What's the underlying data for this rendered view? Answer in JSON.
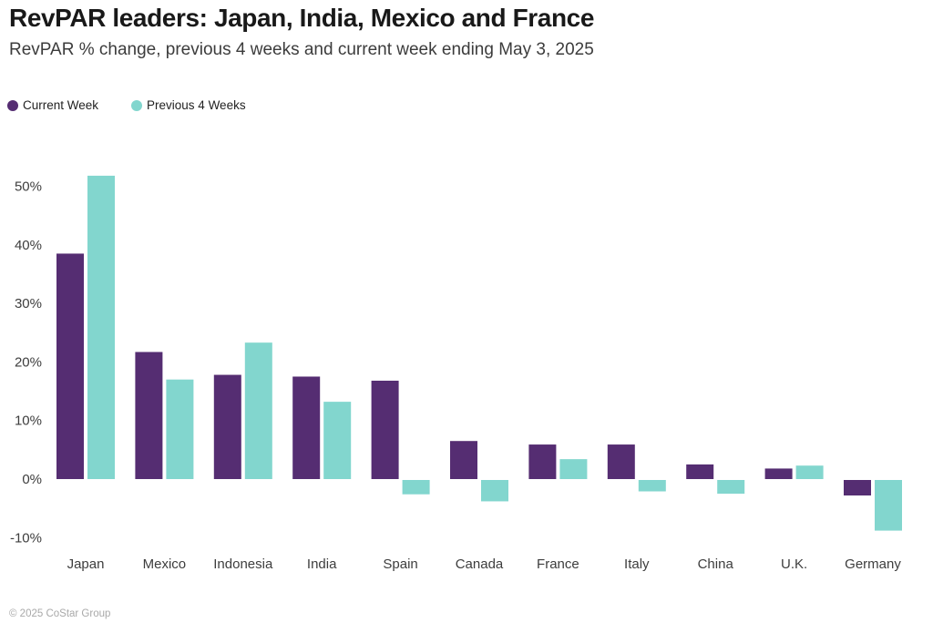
{
  "header": {
    "title": "RevPAR leaders: Japan, India, Mexico and France",
    "subtitle": "RevPAR % change, previous 4 weeks and current week ending May 3, 2025"
  },
  "legend": [
    {
      "label": "Current Week",
      "color": "#552d72"
    },
    {
      "label": "Previous 4 Weeks",
      "color": "#82d6ce"
    }
  ],
  "footer": {
    "copyright": "© 2025 CoStar Group"
  },
  "chart_data": {
    "type": "bar",
    "title": "RevPAR leaders: Japan, India, Mexico and France",
    "subtitle": "RevPAR % change, previous 4 weeks and current week ending May 3, 2025",
    "categories": [
      "Japan",
      "Mexico",
      "Indonesia",
      "India",
      "Spain",
      "Canada",
      "France",
      "Italy",
      "China",
      "U.K.",
      "Germany"
    ],
    "series": [
      {
        "name": "Current Week",
        "color": "#552d72",
        "values": [
          38.5,
          21.7,
          17.8,
          17.5,
          16.8,
          6.5,
          5.9,
          5.9,
          2.5,
          1.8,
          -2.8
        ]
      },
      {
        "name": "Previous 4 Weeks",
        "color": "#82d6ce",
        "values": [
          51.8,
          17.0,
          23.3,
          13.2,
          -2.6,
          -3.8,
          3.4,
          -2.1,
          -2.5,
          2.3,
          -8.8
        ]
      }
    ],
    "xlabel": "",
    "ylabel": "",
    "y_tick_values": [
      50,
      40,
      30,
      20,
      10,
      0,
      -10
    ],
    "y_tick_labels": [
      "50%",
      "40%",
      "30%",
      "20%",
      "10%",
      "0%",
      "-10%"
    ],
    "ylim": [
      -13,
      55
    ],
    "grid": false,
    "legend_position": "top-left",
    "axis_text_color": "#3d3d3d"
  }
}
